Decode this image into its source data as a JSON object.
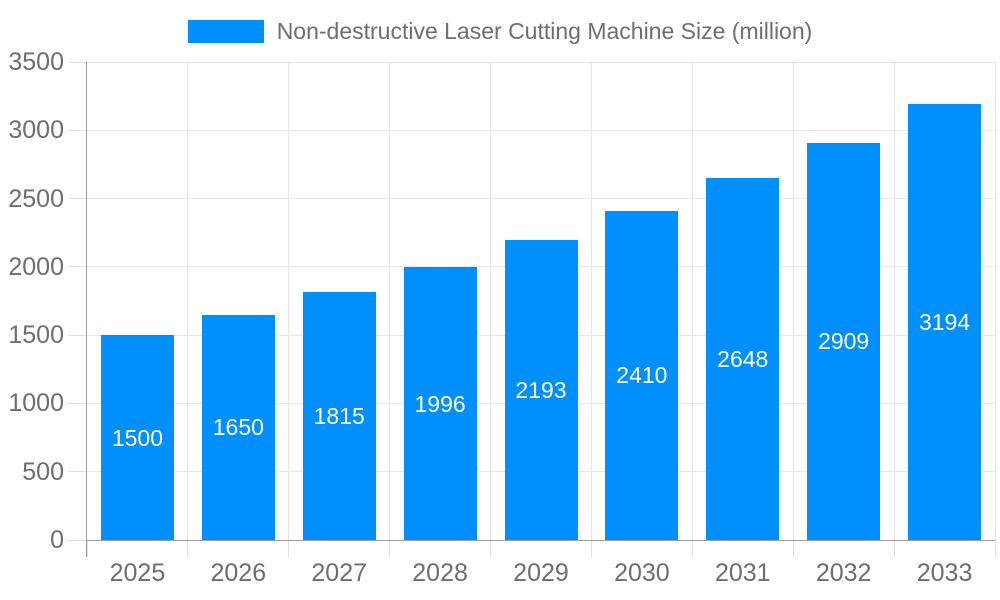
{
  "colors": {
    "bar": "#008FFB",
    "grid": "#e6e6e6",
    "tick": "#e0e0e0",
    "axis": "#9e9e9e",
    "text": "#6e6e6e",
    "bar_label": "#ffffff",
    "background": "#ffffff"
  },
  "chart_data": {
    "type": "bar",
    "title": "Non-destructive Laser Cutting Machine Size (million)",
    "legend": [
      "Non-destructive Laser Cutting Machine Size (million)"
    ],
    "legend_position": "top",
    "categories": [
      "2025",
      "2026",
      "2027",
      "2028",
      "2029",
      "2030",
      "2031",
      "2032",
      "2033"
    ],
    "values": [
      1500,
      1650,
      1815,
      1996,
      2193,
      2410,
      2648,
      2909,
      3194
    ],
    "xlabel": "",
    "ylabel": "",
    "ylim": [
      0,
      3500
    ],
    "yticks": [
      0,
      500,
      1000,
      1500,
      2000,
      2500,
      3000,
      3500
    ],
    "grid": true,
    "data_labels": "inside-center"
  }
}
